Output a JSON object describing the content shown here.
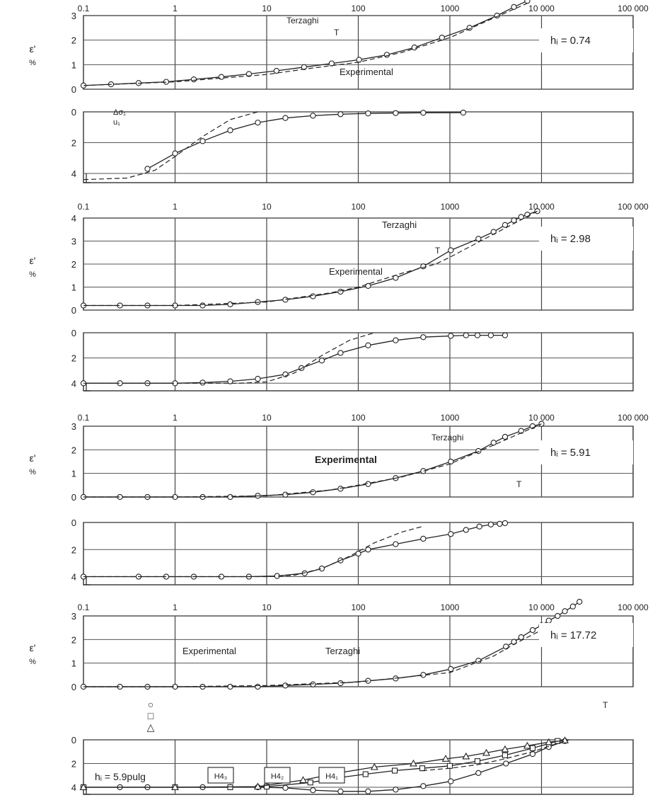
{
  "figure": {
    "x_ticks": [
      "0.1",
      "1",
      "10",
      "100",
      "1000",
      "10 000",
      "100 000"
    ],
    "y_axis_symbol": "ε'",
    "y_axis_unit": "%",
    "legend_symbols": [
      "○",
      "□",
      "△"
    ]
  },
  "chart_data": [
    {
      "type": "line",
      "panel": "strain",
      "x_scale": "log",
      "xlim": [
        0.1,
        100000
      ],
      "ylim": [
        3,
        0
      ],
      "y_ticks": [
        "0",
        "1",
        "2",
        "3"
      ],
      "label": "hᵢ = 0.74",
      "annotations": [
        "Terzaghi",
        "T",
        "Experimental"
      ],
      "series": [
        {
          "name": "Experimental",
          "style": "solid-markers",
          "x": [
            0.1,
            0.2,
            0.4,
            0.8,
            1.6,
            3.2,
            6.4,
            12.8,
            25.6,
            51.2,
            102,
            205,
            410,
            819,
            1638,
            3277,
            5000,
            7000
          ],
          "y": [
            0.15,
            0.2,
            0.25,
            0.3,
            0.4,
            0.5,
            0.62,
            0.75,
            0.9,
            1.05,
            1.2,
            1.4,
            1.7,
            2.1,
            2.5,
            3.0,
            3.35,
            3.6
          ]
        },
        {
          "name": "Terzaghi",
          "style": "dashed",
          "x": [
            0.1,
            1,
            10,
            30,
            100,
            300,
            1000,
            3000,
            7000
          ],
          "y": [
            0.15,
            0.3,
            0.6,
            0.85,
            1.1,
            1.5,
            2.1,
            2.9,
            3.5
          ]
        }
      ]
    },
    {
      "type": "line",
      "panel": "pore-pressure",
      "x_scale": "log",
      "xlim": [
        0.1,
        100000
      ],
      "ylim": [
        0,
        4.6
      ],
      "y_ticks": [
        "4",
        "2",
        "0"
      ],
      "annotations": [
        "Δσ₁",
        "u₁"
      ],
      "series": [
        {
          "name": "Experimental",
          "style": "solid-markers",
          "x": [
            0.5,
            1,
            2,
            4,
            8,
            16,
            32,
            64,
            128,
            256,
            512,
            1400
          ],
          "y": [
            3.7,
            2.7,
            1.9,
            1.2,
            0.7,
            0.4,
            0.25,
            0.15,
            0.1,
            0.08,
            0.06,
            0.05
          ]
        },
        {
          "name": "Terzaghi",
          "style": "dashed",
          "x": [
            0.1,
            0.3,
            0.6,
            1,
            2,
            4,
            8
          ],
          "y": [
            4.4,
            4.3,
            3.8,
            2.9,
            1.6,
            0.5,
            0.0
          ]
        }
      ]
    },
    {
      "type": "line",
      "panel": "strain",
      "x_scale": "log",
      "xlim": [
        0.1,
        100000
      ],
      "ylim": [
        4,
        0
      ],
      "y_ticks": [
        "0",
        "1",
        "2",
        "3",
        "4"
      ],
      "label": "hᵢ = 2.98",
      "annotations": [
        "Terzaghi",
        "T",
        "Experimental"
      ],
      "series": [
        {
          "name": "Experimental",
          "style": "solid-markers",
          "x": [
            0.1,
            0.25,
            0.5,
            1,
            2,
            4,
            8,
            16,
            32,
            64,
            128,
            256,
            512,
            1024,
            2048,
            3000,
            4000,
            5000,
            6000,
            7000,
            9000
          ],
          "y": [
            0.2,
            0.2,
            0.2,
            0.2,
            0.2,
            0.25,
            0.35,
            0.45,
            0.6,
            0.8,
            1.05,
            1.4,
            1.9,
            2.6,
            3.1,
            3.4,
            3.7,
            3.9,
            4.05,
            4.15,
            4.3
          ]
        },
        {
          "name": "Terzaghi",
          "style": "dashed",
          "x": [
            0.1,
            1,
            10,
            50,
            100,
            300,
            700,
            1000,
            3000,
            9000
          ],
          "y": [
            0.2,
            0.2,
            0.35,
            0.75,
            1.0,
            1.6,
            2.0,
            2.3,
            3.3,
            4.3
          ]
        }
      ]
    },
    {
      "type": "line",
      "panel": "pore-pressure",
      "x_scale": "log",
      "xlim": [
        0.1,
        100000
      ],
      "ylim": [
        0,
        4.6
      ],
      "y_ticks": [
        "4",
        "2",
        "0"
      ],
      "series": [
        {
          "name": "Experimental",
          "style": "solid-markers",
          "x": [
            0.1,
            0.25,
            0.5,
            1,
            2,
            4,
            8,
            16,
            24,
            40,
            64,
            128,
            256,
            512,
            1024,
            1500,
            2000,
            2800,
            4000
          ],
          "y": [
            4.0,
            4.0,
            4.0,
            4.0,
            3.95,
            3.85,
            3.65,
            3.3,
            2.8,
            2.2,
            1.6,
            1.0,
            0.6,
            0.35,
            0.25,
            0.2,
            0.2,
            0.2,
            0.2
          ]
        },
        {
          "name": "Terzaghi",
          "style": "dashed",
          "x": [
            0.1,
            5,
            10,
            20,
            40,
            80,
            150
          ],
          "y": [
            4.0,
            4.0,
            3.9,
            3.2,
            1.8,
            0.6,
            0.0
          ]
        }
      ]
    },
    {
      "type": "line",
      "panel": "strain",
      "x_scale": "log",
      "xlim": [
        0.1,
        100000
      ],
      "ylim": [
        3,
        0
      ],
      "y_ticks": [
        "0",
        "1",
        "2",
        "3"
      ],
      "label": "hᵢ = 5.91",
      "annotations": [
        "Terzaghi",
        "Experimental",
        "T"
      ],
      "series": [
        {
          "name": "Experimental",
          "style": "solid-markers",
          "x": [
            0.1,
            0.25,
            0.5,
            1,
            2,
            4,
            8,
            16,
            32,
            64,
            128,
            256,
            512,
            1024,
            2048,
            3000,
            4000,
            6000,
            8000,
            10000
          ],
          "y": [
            0.0,
            0.0,
            0.0,
            0.0,
            0.0,
            0.0,
            0.05,
            0.1,
            0.2,
            0.35,
            0.55,
            0.8,
            1.1,
            1.5,
            1.95,
            2.3,
            2.55,
            2.8,
            3.0,
            3.1
          ]
        },
        {
          "name": "Terzaghi",
          "style": "dashed",
          "x": [
            0.1,
            1,
            10,
            50,
            100,
            300,
            1000,
            3000,
            10000
          ],
          "y": [
            0.0,
            0.0,
            0.05,
            0.3,
            0.5,
            0.85,
            1.4,
            2.2,
            3.1
          ]
        }
      ]
    },
    {
      "type": "line",
      "panel": "pore-pressure",
      "x_scale": "log",
      "xlim": [
        0.1,
        100000
      ],
      "ylim": [
        0,
        4.6
      ],
      "y_ticks": [
        "4",
        "2",
        "0"
      ],
      "series": [
        {
          "name": "Experimental",
          "style": "solid-markers",
          "x": [
            0.1,
            0.4,
            0.8,
            1.6,
            3.2,
            6.4,
            13,
            26,
            40,
            64,
            100,
            128,
            256,
            512,
            1024,
            1500,
            2100,
            2800,
            3500,
            4000
          ],
          "y": [
            4.0,
            4.0,
            4.0,
            4.0,
            4.0,
            4.0,
            3.95,
            3.75,
            3.4,
            2.8,
            2.3,
            2.0,
            1.6,
            1.2,
            0.85,
            0.55,
            0.3,
            0.15,
            0.1,
            0.05
          ]
        },
        {
          "name": "Terzaghi",
          "style": "dashed",
          "x": [
            0.1,
            10,
            20,
            40,
            80,
            150,
            300,
            500
          ],
          "y": [
            4.0,
            4.0,
            3.9,
            3.4,
            2.5,
            1.5,
            0.7,
            0.3
          ]
        }
      ]
    },
    {
      "type": "line",
      "panel": "strain",
      "x_scale": "log",
      "xlim": [
        0.1,
        100000
      ],
      "ylim": [
        3,
        0
      ],
      "y_ticks": [
        "0",
        "1",
        "2",
        "3"
      ],
      "label": "hᵢ = 17.72",
      "annotations": [
        "Experimental",
        "Terzaghi",
        "T"
      ],
      "series": [
        {
          "name": "Experimental",
          "style": "solid-markers",
          "x": [
            0.1,
            0.25,
            0.5,
            1,
            2,
            4,
            8,
            16,
            32,
            64,
            128,
            256,
            512,
            1024,
            2048,
            4096,
            5000,
            6000,
            8000,
            10000,
            12000,
            15000,
            18000,
            22000,
            26000
          ],
          "y": [
            0.0,
            0.0,
            0.0,
            0.0,
            0.0,
            0.0,
            0.0,
            0.05,
            0.1,
            0.15,
            0.25,
            0.35,
            0.5,
            0.75,
            1.1,
            1.7,
            1.9,
            2.1,
            2.4,
            2.6,
            2.8,
            3.0,
            3.2,
            3.4,
            3.6
          ]
        },
        {
          "name": "Terzaghi",
          "style": "dashed",
          "x": [
            0.1,
            1,
            10,
            100,
            1000,
            3000,
            5000,
            10000,
            30000
          ],
          "y": [
            0.0,
            0.0,
            0.05,
            0.2,
            0.6,
            1.3,
            1.8,
            2.4,
            2.6
          ]
        }
      ]
    },
    {
      "type": "line",
      "panel": "pore-pressure",
      "x_scale": "log",
      "xlim": [
        0.1,
        100000
      ],
      "ylim": [
        0,
        4.6
      ],
      "y_ticks": [
        "4",
        "2",
        "0"
      ],
      "label": "hᵢ = 5.9pulg",
      "annotations": [
        "H4₃",
        "H4₂",
        "H4₁"
      ],
      "series": [
        {
          "name": "○",
          "style": "solid-markers",
          "x": [
            0.1,
            0.25,
            0.5,
            1,
            2,
            4,
            8,
            16,
            32,
            64,
            128,
            256,
            512,
            1024,
            2048,
            4096,
            8000,
            12000,
            18000
          ],
          "y": [
            4.0,
            4.0,
            4.0,
            4.0,
            4.0,
            4.0,
            4.0,
            4.05,
            4.25,
            4.35,
            4.35,
            4.2,
            3.9,
            3.5,
            2.8,
            2.0,
            1.2,
            0.6,
            0.1
          ]
        },
        {
          "name": "□",
          "style": "solid-markers",
          "x": [
            0.1,
            1,
            4,
            10,
            30,
            60,
            120,
            250,
            500,
            1000,
            2000,
            4000,
            8000,
            15000
          ],
          "y": [
            4.0,
            4.0,
            4.0,
            3.95,
            3.6,
            3.2,
            2.9,
            2.6,
            2.4,
            2.2,
            1.8,
            1.3,
            0.7,
            0.1
          ]
        },
        {
          "name": "△",
          "style": "solid-markers",
          "x": [
            0.1,
            1,
            8,
            25,
            60,
            150,
            400,
            900,
            1500,
            2500,
            4000,
            7000,
            12000,
            18000
          ],
          "y": [
            4.0,
            4.0,
            3.95,
            3.4,
            2.8,
            2.3,
            2.0,
            1.6,
            1.4,
            1.1,
            0.8,
            0.5,
            0.2,
            0.05
          ]
        },
        {
          "name": "Terzaghi",
          "style": "dashed",
          "x": [
            500,
            1000,
            2000,
            4000,
            8000,
            15000,
            20000
          ],
          "y": [
            2.6,
            2.4,
            2.1,
            1.6,
            1.0,
            0.3,
            0.0
          ]
        }
      ]
    }
  ]
}
